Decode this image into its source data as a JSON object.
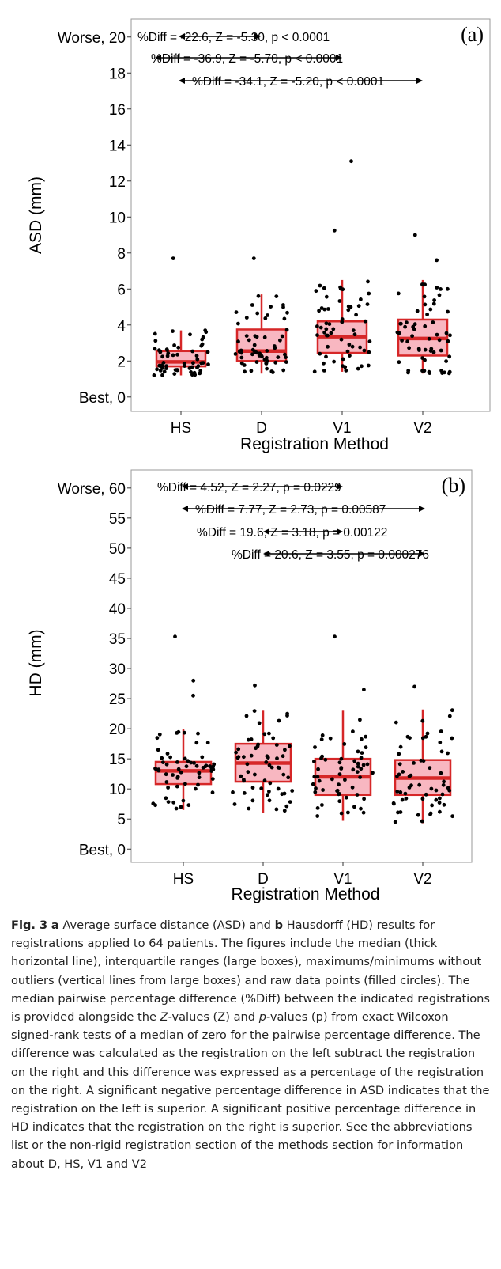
{
  "chart_data": [
    {
      "type": "box",
      "panel_label": "(a)",
      "ylabel": "ASD (mm)",
      "xlabel": "Registration Method",
      "categories": [
        "HS",
        "D",
        "V1",
        "V2"
      ],
      "ylim": [
        -0.8,
        21
      ],
      "yticks": [
        {
          "value": 0,
          "label": "Best, 0"
        },
        {
          "value": 2,
          "label": "2"
        },
        {
          "value": 4,
          "label": "4"
        },
        {
          "value": 6,
          "label": "6"
        },
        {
          "value": 8,
          "label": "8"
        },
        {
          "value": 10,
          "label": "10"
        },
        {
          "value": 12,
          "label": "12"
        },
        {
          "value": 14,
          "label": "14"
        },
        {
          "value": 16,
          "label": "16"
        },
        {
          "value": 18,
          "label": "18"
        },
        {
          "value": 20,
          "label": "Worse, 20"
        }
      ],
      "boxes": [
        {
          "name": "HS",
          "whisker_low": 1.2,
          "q1": 1.7,
          "median": 1.95,
          "q3": 2.55,
          "whisker_high": 3.7
        },
        {
          "name": "D",
          "whisker_low": 1.3,
          "q1": 2.0,
          "median": 2.55,
          "q3": 3.75,
          "whisker_high": 5.7
        },
        {
          "name": "V1",
          "whisker_low": 1.4,
          "q1": 2.45,
          "median": 3.35,
          "q3": 4.2,
          "whisker_high": 6.5
        },
        {
          "name": "V2",
          "whisker_low": 1.3,
          "q1": 2.3,
          "median": 3.25,
          "q3": 4.3,
          "whisker_high": 6.5
        }
      ],
      "outliers": [
        {
          "name": "HS",
          "values": [
            7.7
          ]
        },
        {
          "name": "D",
          "values": [
            7.7
          ]
        },
        {
          "name": "V1",
          "values": [
            9.25,
            13.1
          ]
        },
        {
          "name": "V2",
          "values": [
            9.0,
            7.6
          ]
        }
      ],
      "comparisons": [
        {
          "from": "HS",
          "to": "D",
          "label": "%Diff = -22.6, Z = -5.30, p < 0.0001"
        },
        {
          "from": "HS",
          "to": "V1",
          "label": "%Diff = -36.9, Z = -5.70, p < 0.0001"
        },
        {
          "from": "HS",
          "to": "V2",
          "label": "%Diff = -34.1, Z = -5.20, p < 0.0001"
        }
      ],
      "colors": {
        "box_fill": "#f8b7c1",
        "box_stroke": "#d62728",
        "points": "#000000"
      }
    },
    {
      "type": "box",
      "panel_label": "(b)",
      "ylabel": "HD (mm)",
      "xlabel": "Registration Method",
      "categories": [
        "HS",
        "D",
        "V1",
        "V2"
      ],
      "ylim": [
        -2.2,
        63
      ],
      "yticks": [
        {
          "value": 0,
          "label": "Best, 0"
        },
        {
          "value": 5,
          "label": "5"
        },
        {
          "value": 10,
          "label": "10"
        },
        {
          "value": 15,
          "label": "15"
        },
        {
          "value": 20,
          "label": "20"
        },
        {
          "value": 25,
          "label": "25"
        },
        {
          "value": 30,
          "label": "30"
        },
        {
          "value": 35,
          "label": "35"
        },
        {
          "value": 40,
          "label": "40"
        },
        {
          "value": 45,
          "label": "45"
        },
        {
          "value": 50,
          "label": "50"
        },
        {
          "value": 55,
          "label": "55"
        },
        {
          "value": 60,
          "label": "Worse, 60"
        }
      ],
      "boxes": [
        {
          "name": "HS",
          "whisker_low": 6.5,
          "q1": 10.8,
          "median": 13.0,
          "q3": 14.5,
          "whisker_high": 20.0
        },
        {
          "name": "D",
          "whisker_low": 6.0,
          "q1": 11.2,
          "median": 14.3,
          "q3": 17.5,
          "whisker_high": 23.0
        },
        {
          "name": "V1",
          "whisker_low": 4.7,
          "q1": 9.0,
          "median": 12.0,
          "q3": 15.0,
          "whisker_high": 23.0
        },
        {
          "name": "V2",
          "whisker_low": 4.3,
          "q1": 9.0,
          "median": 11.8,
          "q3": 14.8,
          "whisker_high": 23.2
        }
      ],
      "outliers": [
        {
          "name": "HS",
          "values": [
            35.3,
            28.0,
            25.5
          ]
        },
        {
          "name": "D",
          "values": [
            27.2
          ]
        },
        {
          "name": "V1",
          "values": [
            35.3,
            26.5
          ]
        },
        {
          "name": "V2",
          "values": [
            27.0
          ]
        }
      ],
      "comparisons": [
        {
          "from": "HS",
          "to": "V1",
          "label": "%Diff = 4.52, Z = 2.27, p = 0.0229"
        },
        {
          "from": "HS",
          "to": "V2",
          "label": "%Diff = 7.77, Z = 2.73, p = 0.00587"
        },
        {
          "from": "D",
          "to": "V1",
          "label": "%Diff = 19.6, Z = 3.18, p = 0.00122"
        },
        {
          "from": "D",
          "to": "V2",
          "label": "%Diff = 20.6, Z = 3.55, p = 0.000276"
        }
      ],
      "colors": {
        "box_fill": "#f8b7c1",
        "box_stroke": "#d62728",
        "points": "#000000"
      }
    }
  ],
  "caption": {
    "fig_label": "Fig. 3",
    "part_a_label": "a",
    "part_a_text": "Average surface distance (ASD) and",
    "part_b_label": "b",
    "text_1": "Hausdorff (HD) results for registrations applied to 64 patients. The figures include the median (thick horizontal line), interquartile ranges (large boxes), maximums/minimums without outliers (vertical lines from large boxes) and raw data points (filled circles). The median pairwise percentage difference (%Diff) between the indicated registrations is provided alongside the",
    "z_italic": "Z",
    "text_2": "-values (Z) and",
    "p_italic": "p",
    "text_3": "-values (p) from exact Wilcoxon signed-rank tests of a median of zero for the pairwise percentage difference. The difference was calculated as the registration on the left subtract the registration on the right and this difference was expressed as a percentage of the registration on the right. A significant negative percentage difference in ASD indicates that the registration on the left is superior. A significant positive percentage difference in HD indicates that the registration on the right is superior. See the abbreviations list or the non-rigid registration section of the methods section for information about D, HS, V1 and V2"
  }
}
